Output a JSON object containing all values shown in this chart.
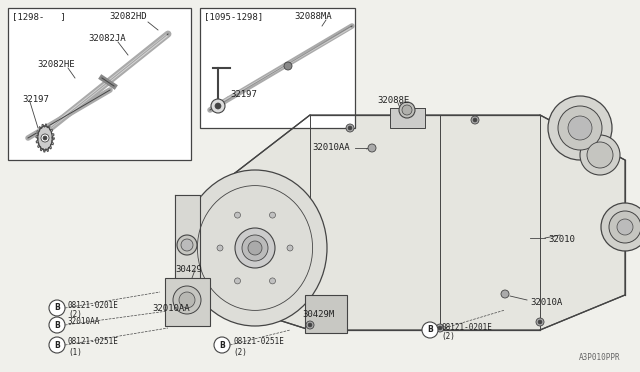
{
  "bg_color": "#f0f0eb",
  "line_color": "#444444",
  "text_color": "#222222",
  "fig_width": 6.4,
  "fig_height": 3.72,
  "watermark": "A3P010PPR",
  "box1_label": "[1298-   ]",
  "box2_label": "[1095-1298]",
  "part_32082HD": "32082HD",
  "part_32082JA": "32082JA",
  "part_32082HE": "32082HE",
  "part_32197_1": "32197",
  "part_32197_2": "32197",
  "part_32088MA": "32088MA",
  "part_32088E": "32088E",
  "part_32010AA_1": "32010AA",
  "part_32010AA_2": "32010AA",
  "part_32010": "32010",
  "part_32010A": "32010A",
  "part_30429": "30429",
  "part_30429M": "30429M",
  "bolt1_label": "08121-0201E",
  "bolt1_sub": "(2)",
  "bolt2_label": "32010AA",
  "bolt3_label": "08121-0251E",
  "bolt3_sub": "(1)",
  "bolt4_label": "08121-0251E",
  "bolt4_sub": "(2)",
  "bolt5_label": "08121-0201E",
  "bolt5_sub": "(2)"
}
